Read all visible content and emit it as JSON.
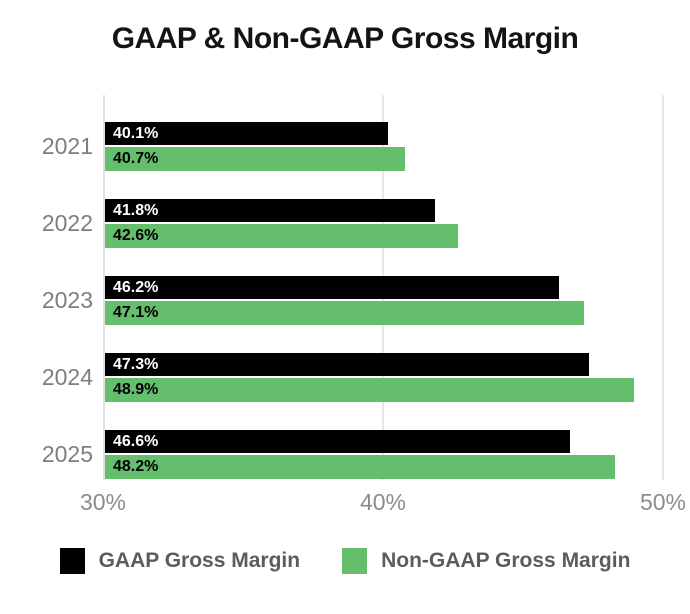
{
  "title": "GAAP & Non-GAAP Gross Margin",
  "chart_data": {
    "type": "bar",
    "orientation": "horizontal",
    "title": "GAAP & Non-GAAP Gross Margin",
    "categories": [
      "2021",
      "2022",
      "2023",
      "2024",
      "2025"
    ],
    "series": [
      {
        "name": "GAAP Gross Margin",
        "color": "#000000",
        "label_color": "#ffffff",
        "values": [
          40.1,
          41.8,
          46.2,
          47.3,
          46.6
        ]
      },
      {
        "name": "Non-GAAP Gross Margin",
        "color": "#64be6c",
        "label_color": "#000000",
        "values": [
          40.7,
          42.6,
          47.1,
          48.9,
          48.2
        ]
      }
    ],
    "value_suffix": "%",
    "xlabel": "",
    "ylabel": "",
    "axis": {
      "min": 30,
      "max": 50,
      "tick_values": [
        30,
        40,
        50
      ],
      "ticks": [
        "30%",
        "40%",
        "50%"
      ]
    },
    "grid": true,
    "legend_position": "bottom",
    "colors": {
      "gridline": "#e7e7e7",
      "axis_line": "#e0e0e0",
      "year_label": "#7e7e7e",
      "tick_label": "#8c8c8c",
      "legend_text": "#5c5c5c",
      "title_text": "#141414"
    }
  }
}
